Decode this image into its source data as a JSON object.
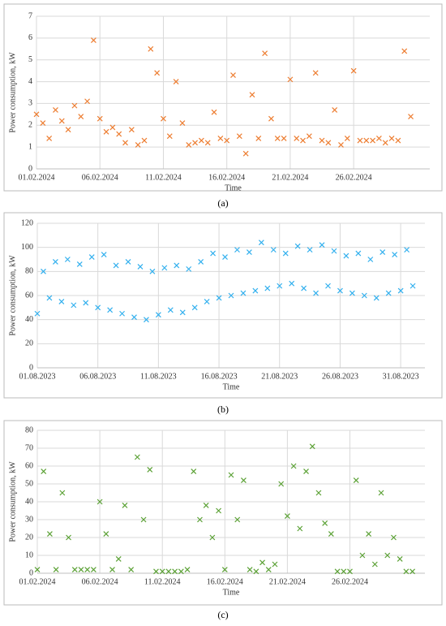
{
  "chart_data": [
    {
      "type": "scatter",
      "panel_label": "(a)",
      "x_label": "Time",
      "y_label": "Power consumption, kW",
      "color": "#ed7d31",
      "marker": "x",
      "grid": true,
      "xlim": [
        0,
        31
      ],
      "xticks": [
        {
          "value": 0,
          "label": "01.02.2024"
        },
        {
          "value": 5,
          "label": "06.02.2024"
        },
        {
          "value": 10,
          "label": "11.02.2024"
        },
        {
          "value": 15,
          "label": "16.02.2024"
        },
        {
          "value": 20,
          "label": "21.02.2024"
        },
        {
          "value": 25,
          "label": "26.02.2024"
        }
      ],
      "ylim": [
        0,
        7
      ],
      "yticks": [
        0,
        1,
        2,
        3,
        4,
        5,
        6,
        7
      ],
      "x": [
        0,
        0.5,
        1,
        1.5,
        2,
        2.5,
        3,
        3.5,
        4,
        4.5,
        5,
        5.5,
        6,
        6.5,
        7,
        7.5,
        8,
        8.5,
        9,
        9.5,
        10,
        10.5,
        11,
        11.5,
        12,
        12.5,
        13,
        13.5,
        14,
        14.5,
        15,
        15.5,
        16,
        16.5,
        17,
        17.5,
        18,
        18.5,
        19,
        19.5,
        20,
        20.5,
        21,
        21.5,
        22,
        22.5,
        23,
        23.5,
        24,
        24.5,
        25,
        25.5,
        26,
        26.5,
        27,
        27.5,
        28,
        28.5,
        29,
        29.5
      ],
      "values": [
        2.5,
        2.1,
        1.4,
        2.7,
        2.2,
        1.8,
        2.9,
        2.4,
        3.1,
        5.9,
        2.3,
        1.7,
        1.9,
        1.6,
        1.2,
        1.8,
        1.1,
        1.3,
        5.5,
        4.4,
        2.3,
        1.5,
        4.0,
        2.1,
        1.1,
        1.2,
        1.3,
        1.2,
        2.6,
        1.4,
        1.3,
        4.3,
        1.5,
        0.7,
        3.4,
        1.4,
        5.3,
        2.3,
        1.4,
        1.4,
        4.1,
        1.4,
        1.3,
        1.5,
        4.4,
        1.3,
        1.2,
        2.7,
        1.1,
        1.4,
        4.5,
        1.3,
        1.3,
        1.3,
        1.4,
        1.2,
        1.4,
        1.3,
        5.4,
        2.4
      ]
    },
    {
      "type": "scatter",
      "panel_label": "(b)",
      "x_label": "Time",
      "y_label": "Power consumption, kW",
      "color": "#33b0ee",
      "marker": "x",
      "grid": true,
      "xlim": [
        0,
        32
      ],
      "xticks": [
        {
          "value": 0,
          "label": "01.08.2023"
        },
        {
          "value": 5,
          "label": "06.08.2023"
        },
        {
          "value": 10,
          "label": "11.08.2023"
        },
        {
          "value": 15,
          "label": "16.08.2023"
        },
        {
          "value": 20,
          "label": "21.08.2023"
        },
        {
          "value": 25,
          "label": "26.08.2023"
        },
        {
          "value": 30,
          "label": "31.08.2023"
        }
      ],
      "ylim": [
        0,
        120
      ],
      "yticks": [
        0,
        20,
        40,
        60,
        80,
        100,
        120
      ],
      "x": [
        0,
        0.5,
        1,
        1.5,
        2,
        2.5,
        3,
        3.5,
        4,
        4.5,
        5,
        5.5,
        6,
        6.5,
        7,
        7.5,
        8,
        8.5,
        9,
        9.5,
        10,
        10.5,
        11,
        11.5,
        12,
        12.5,
        13,
        13.5,
        14,
        14.5,
        15,
        15.5,
        16,
        16.5,
        17,
        17.5,
        18,
        18.5,
        19,
        19.5,
        20,
        20.5,
        21,
        21.5,
        22,
        22.5,
        23,
        23.5,
        24,
        24.5,
        25,
        25.5,
        26,
        26.5,
        27,
        27.5,
        28,
        28.5,
        29,
        29.5,
        30,
        30.5,
        31
      ],
      "values": [
        45,
        80,
        58,
        88,
        55,
        90,
        52,
        86,
        54,
        92,
        50,
        94,
        48,
        85,
        45,
        88,
        42,
        84,
        40,
        80,
        44,
        83,
        48,
        85,
        46,
        82,
        50,
        88,
        55,
        95,
        58,
        92,
        60,
        98,
        62,
        96,
        64,
        104,
        66,
        98,
        68,
        95,
        70,
        101,
        66,
        98,
        62,
        102,
        68,
        97,
        64,
        93,
        62,
        95,
        60,
        90,
        58,
        96,
        62,
        94,
        64,
        98,
        68
      ]
    },
    {
      "type": "scatter",
      "panel_label": "(c)",
      "x_label": "Time",
      "y_label": "Power consumption, kW",
      "color": "#5ba135",
      "marker": "x",
      "grid": true,
      "xlim": [
        0,
        31
      ],
      "xticks": [
        {
          "value": 0,
          "label": "01.02.2024"
        },
        {
          "value": 5,
          "label": "06.02.2024"
        },
        {
          "value": 10,
          "label": "11.02.2024"
        },
        {
          "value": 15,
          "label": "16.02.2024"
        },
        {
          "value": 20,
          "label": "21.02.2024"
        },
        {
          "value": 25,
          "label": "26.02.2024"
        }
      ],
      "ylim": [
        0,
        80
      ],
      "yticks": [
        0,
        10,
        20,
        30,
        40,
        50,
        60,
        70,
        80
      ],
      "x": [
        0,
        0.5,
        1,
        1.5,
        2,
        2.5,
        3,
        3.5,
        4,
        4.5,
        5,
        5.5,
        6,
        6.5,
        7,
        7.5,
        8,
        8.5,
        9,
        9.5,
        10,
        10.5,
        11,
        11.5,
        12,
        12.5,
        13,
        13.5,
        14,
        14.5,
        15,
        15.5,
        16,
        16.5,
        17,
        17.5,
        18,
        18.5,
        19,
        19.5,
        20,
        20.5,
        21,
        21.5,
        22,
        22.5,
        23,
        23.5,
        24,
        24.5,
        25,
        25.5,
        26,
        26.5,
        27,
        27.5,
        28,
        28.5,
        29,
        29.5,
        30
      ],
      "values": [
        2,
        57,
        22,
        2,
        45,
        20,
        2,
        2,
        2,
        2,
        40,
        22,
        2,
        8,
        38,
        2,
        65,
        30,
        58,
        1,
        1,
        1,
        1,
        1,
        2,
        57,
        30,
        38,
        20,
        35,
        2,
        55,
        30,
        52,
        2,
        1,
        6,
        2,
        5,
        50,
        32,
        60,
        25,
        57,
        71,
        45,
        28,
        22,
        1,
        1,
        1,
        52,
        10,
        22,
        5,
        45,
        10,
        20,
        8,
        1,
        1
      ]
    }
  ]
}
